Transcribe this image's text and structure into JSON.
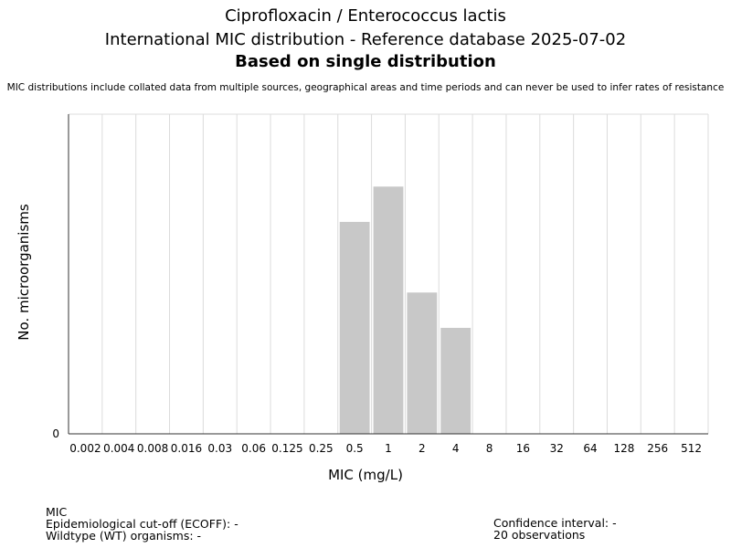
{
  "chart_data": {
    "type": "bar",
    "title_line1": "Ciprofloxacin / Enterococcus lactis",
    "title_line2": "International MIC distribution - Reference database 2025-07-02",
    "subtitle": "Based on single distribution",
    "note": "MIC distributions include collated data from multiple sources, geographical areas and time periods and can never be used to infer rates of resistance",
    "xlabel": "MIC (mg/L)",
    "ylabel": "No. microorganisms",
    "categories": [
      "0.002",
      "0.004",
      "0.008",
      "0.016",
      "0.03",
      "0.06",
      "0.125",
      "0.25",
      "0.5",
      "1",
      "2",
      "4",
      "8",
      "16",
      "32",
      "64",
      "128",
      "256",
      "512"
    ],
    "values": [
      0,
      0,
      0,
      0,
      0,
      0,
      0,
      0,
      6,
      7,
      4,
      3,
      0,
      0,
      0,
      0,
      0,
      0,
      0
    ],
    "ylim": [
      0,
      9.05
    ],
    "y_tick_labels": [
      "0"
    ],
    "grid": true,
    "bar_color": "#c8c8c8"
  },
  "footer": {
    "mic_label": "MIC",
    "ecoff": "Epidemiological cut-off (ECOFF): -",
    "wildtype": "Wildtype (WT) organisms:  -",
    "confidence": "Confidence interval: -",
    "observations": "20 observations"
  }
}
